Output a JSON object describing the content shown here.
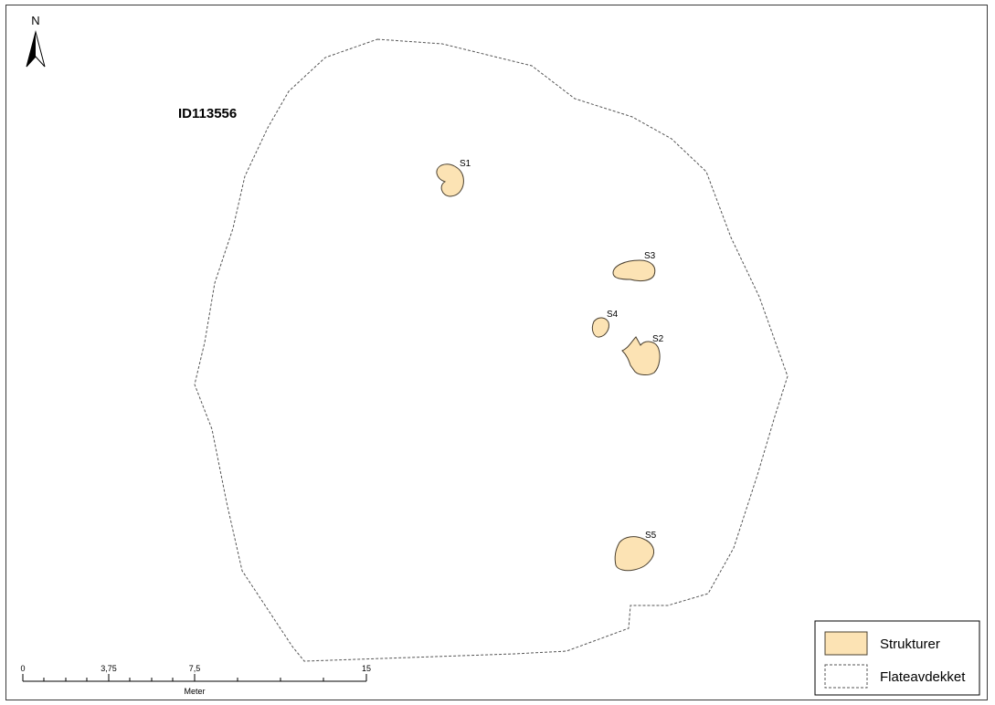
{
  "map": {
    "site_id": "ID113556",
    "north_arrow_label": "N",
    "excavated_area_stroke": "#555555",
    "structure_fill": "#FCE3B4",
    "structure_stroke": "#4a4030"
  },
  "structures": [
    {
      "id": "S1",
      "label": "S1"
    },
    {
      "id": "S2",
      "label": "S2"
    },
    {
      "id": "S3",
      "label": "S3"
    },
    {
      "id": "S4",
      "label": "S4"
    },
    {
      "id": "S5",
      "label": "S5"
    }
  ],
  "scale_bar": {
    "tick_labels": [
      "0",
      "3,75",
      "7,5",
      "15"
    ],
    "unit": "Meter"
  },
  "legend": {
    "items": [
      {
        "label": "Strukturer",
        "style": "structure"
      },
      {
        "label": "Flateavdekket",
        "style": "dashed-outline"
      }
    ]
  }
}
